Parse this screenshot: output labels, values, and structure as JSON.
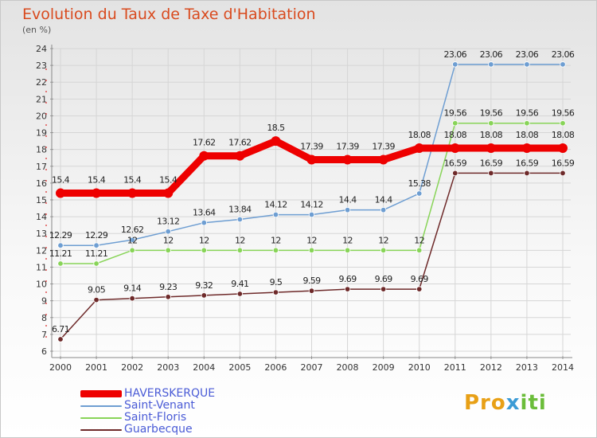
{
  "title": "Evolution du Taux de Taxe d'Habitation",
  "unit_label": "(en %)",
  "logo": "Proxiti",
  "chart_data": {
    "type": "line",
    "x": [
      "2000",
      "2001",
      "2002",
      "2003",
      "2004",
      "2005",
      "2006",
      "2007",
      "2008",
      "2009",
      "2010",
      "2011",
      "2012",
      "2013",
      "2014"
    ],
    "ylim": [
      6,
      24
    ],
    "yticks": [
      6,
      7,
      8,
      9,
      10,
      11,
      12,
      13,
      14,
      15,
      16,
      17,
      18,
      19,
      20,
      21,
      22,
      23,
      24
    ],
    "grid": true,
    "legend_position": "bottom-left",
    "series": [
      {
        "name": "HAVERSKERQUE",
        "color": "#ee0000",
        "width": 9,
        "values": [
          15.4,
          15.4,
          15.4,
          15.4,
          17.62,
          17.62,
          18.5,
          17.39,
          17.39,
          17.39,
          18.08,
          18.08,
          18.08,
          18.08,
          18.08
        ],
        "labels": [
          "15.4",
          "15.4",
          "15.4",
          "15.4",
          "17.62",
          "17.62",
          "18.5",
          "17.39",
          "17.39",
          "17.39",
          "18.08",
          "18.08",
          "18.08",
          "18.08",
          "18.08"
        ]
      },
      {
        "name": "Saint-Venant",
        "color": "#6e9ed2",
        "width": 1.5,
        "values": [
          12.29,
          12.29,
          12.62,
          13.12,
          13.64,
          13.84,
          14.12,
          14.12,
          14.4,
          14.4,
          15.38,
          23.06,
          23.06,
          23.06,
          23.06
        ],
        "labels": [
          "12.29",
          "12.29",
          "12.62",
          "13.12",
          "13.64",
          "13.84",
          "14.12",
          "14.12",
          "14.4",
          "14.4",
          "15.38",
          "23.06",
          "23.06",
          "23.06",
          "23.06"
        ]
      },
      {
        "name": "Saint-Floris",
        "color": "#88d458",
        "width": 1.5,
        "values": [
          11.21,
          11.21,
          12,
          12,
          12,
          12,
          12,
          12,
          12,
          12,
          12,
          19.56,
          19.56,
          19.56,
          19.56
        ],
        "labels": [
          "11.21",
          "11.21",
          "12",
          "12",
          "12",
          "12",
          "12",
          "12",
          "12",
          "12",
          "12",
          "19.56",
          "19.56",
          "19.56",
          "19.56"
        ]
      },
      {
        "name": "Guarbecque",
        "color": "#6e2a2a",
        "width": 1.5,
        "values": [
          6.71,
          9.05,
          9.14,
          9.23,
          9.32,
          9.41,
          9.5,
          9.59,
          9.69,
          9.69,
          9.69,
          16.59,
          16.59,
          16.59,
          16.59
        ],
        "labels": [
          "6.71",
          "9.05",
          "9.14",
          "9.23",
          "9.32",
          "9.41",
          "9.5",
          "9.59",
          "9.69",
          "9.69",
          "9.69",
          "16.59",
          "16.59",
          "16.59",
          "16.59"
        ]
      }
    ]
  }
}
